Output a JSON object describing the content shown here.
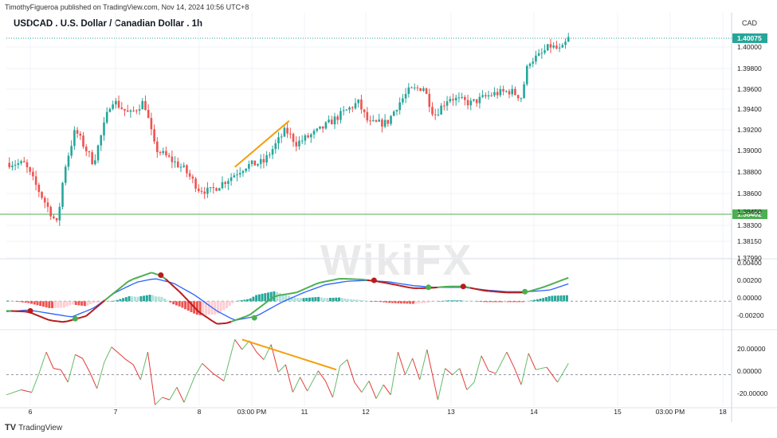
{
  "header": {
    "publisher_text": "TimothyFigueroa published on TradingView.com, Nov 14, 2024 10:56 UTC+8",
    "title": "USDCAD . U.S. Dollar / Canadian Dollar . 1h",
    "currency": "CAD"
  },
  "footer": {
    "logo_text": "TradingView"
  },
  "watermark": {
    "text": "WikiFX"
  },
  "colors": {
    "up": "#26a69a",
    "down": "#ef5350",
    "macd_line": "#4caf50",
    "signal_line": "#2962ff",
    "macd_down": "#b71c1c",
    "rsi_up": "#66bb6a",
    "rsi_down": "#e53935",
    "trendline": "#f59e0b",
    "price_line": "#26a69a",
    "support_line": "#4caf50"
  },
  "chart_data": [
    {
      "type": "candlestick",
      "title": "USDCAD . U.S. Dollar / Canadian Dollar . 1h",
      "x_tick_labels": [
        "6",
        "7",
        "8",
        "03:00 PM",
        "11",
        "12",
        "13",
        "14",
        "15",
        "03:00 PM",
        "18"
      ],
      "y_tick_labels": [
        "1.40000",
        "1.39800",
        "1.39600",
        "1.39400",
        "1.39200",
        "1.39000",
        "1.38800",
        "1.38600",
        "1.38450",
        "1.38300",
        "1.38150",
        "1.37990"
      ],
      "ylim": [
        1.3795,
        1.4012
      ],
      "current_price": 1.40075,
      "current_price_label": "1.40075",
      "horizontal_level": 1.38402,
      "horizontal_level_label": "1.38402",
      "trendline": {
        "from_x": 0.315,
        "from_y": 1.3882,
        "to_x": 0.39,
        "to_y": 1.3927
      },
      "anchors": [
        [
          0,
          1.3886
        ],
        [
          0.025,
          1.3885
        ],
        [
          0.05,
          1.3852
        ],
        [
          0.07,
          1.3826
        ],
        [
          0.08,
          1.388
        ],
        [
          0.095,
          1.3918
        ],
        [
          0.12,
          1.3886
        ],
        [
          0.145,
          1.3948
        ],
        [
          0.17,
          1.3933
        ],
        [
          0.19,
          1.3946
        ],
        [
          0.205,
          1.39
        ],
        [
          0.245,
          1.388
        ],
        [
          0.265,
          1.3861
        ],
        [
          0.28,
          1.3858
        ],
        [
          0.305,
          1.387
        ],
        [
          0.33,
          1.3883
        ],
        [
          0.355,
          1.3887
        ],
        [
          0.385,
          1.3918
        ],
        [
          0.4,
          1.3905
        ],
        [
          0.43,
          1.3917
        ],
        [
          0.465,
          1.3935
        ],
        [
          0.485,
          1.3945
        ],
        [
          0.5,
          1.3924
        ],
        [
          0.525,
          1.3925
        ],
        [
          0.54,
          1.3943
        ],
        [
          0.555,
          1.3956
        ],
        [
          0.575,
          1.396
        ],
        [
          0.59,
          1.3932
        ],
        [
          0.61,
          1.395
        ],
        [
          0.64,
          1.3944
        ],
        [
          0.67,
          1.3953
        ],
        [
          0.695,
          1.3956
        ],
        [
          0.71,
          1.395
        ],
        [
          0.72,
          1.3985
        ],
        [
          0.735,
          1.399
        ],
        [
          0.75,
          1.4
        ],
        [
          0.765,
          1.3995
        ],
        [
          0.775,
          1.4007
        ]
      ],
      "n_bars": 190
    },
    {
      "type": "macd",
      "y_tick_labels": [
        "0.00400",
        "0.00200",
        "0.00000",
        "-0.00200"
      ],
      "ylim": [
        -0.0029,
        0.0046
      ],
      "macd_anchors": [
        [
          0,
          -0.0011
        ],
        [
          0.03,
          -0.0012
        ],
        [
          0.06,
          -0.0022
        ],
        [
          0.08,
          -0.0024
        ],
        [
          0.11,
          -0.0017
        ],
        [
          0.14,
          0.0004
        ],
        [
          0.17,
          0.0024
        ],
        [
          0.2,
          0.0033
        ],
        [
          0.215,
          0.0029
        ],
        [
          0.24,
          0.001
        ],
        [
          0.265,
          -0.0012
        ],
        [
          0.29,
          -0.0026
        ],
        [
          0.305,
          -0.0025
        ],
        [
          0.335,
          -0.0016
        ],
        [
          0.37,
          0.0006
        ],
        [
          0.4,
          0.001
        ],
        [
          0.43,
          0.0021
        ],
        [
          0.46,
          0.0026
        ],
        [
          0.49,
          0.0025
        ],
        [
          0.51,
          0.0023
        ],
        [
          0.53,
          0.002
        ],
        [
          0.56,
          0.0015
        ],
        [
          0.58,
          0.0015
        ],
        [
          0.61,
          0.0017
        ],
        [
          0.63,
          0.0017
        ],
        [
          0.66,
          0.0012
        ],
        [
          0.69,
          0.001
        ],
        [
          0.715,
          0.001
        ],
        [
          0.74,
          0.0016
        ],
        [
          0.775,
          0.0027
        ]
      ],
      "signal_anchors": [
        [
          0,
          -0.0012
        ],
        [
          0.03,
          -0.001
        ],
        [
          0.06,
          -0.0014
        ],
        [
          0.09,
          -0.0018
        ],
        [
          0.12,
          -0.0008
        ],
        [
          0.15,
          0.001
        ],
        [
          0.18,
          0.0022
        ],
        [
          0.205,
          0.0026
        ],
        [
          0.23,
          0.0021
        ],
        [
          0.26,
          0.0007
        ],
        [
          0.29,
          -0.0011
        ],
        [
          0.315,
          -0.0022
        ],
        [
          0.345,
          -0.0017
        ],
        [
          0.38,
          -0.0001
        ],
        [
          0.41,
          0.001
        ],
        [
          0.44,
          0.0019
        ],
        [
          0.47,
          0.0023
        ],
        [
          0.5,
          0.0024
        ],
        [
          0.53,
          0.0022
        ],
        [
          0.56,
          0.0018
        ],
        [
          0.59,
          0.0016
        ],
        [
          0.63,
          0.0016
        ],
        [
          0.66,
          0.0013
        ],
        [
          0.69,
          0.0011
        ],
        [
          0.72,
          0.0011
        ],
        [
          0.75,
          0.0013
        ],
        [
          0.775,
          0.002
        ]
      ],
      "cross_markers": [
        {
          "x": 0.033,
          "value": -0.0011,
          "color": "#b71c1c"
        },
        {
          "x": 0.095,
          "value": -0.002,
          "color": "#4caf50"
        },
        {
          "x": 0.213,
          "value": 0.003,
          "color": "#b71c1c"
        },
        {
          "x": 0.342,
          "value": -0.0019,
          "color": "#4caf50"
        },
        {
          "x": 0.507,
          "value": 0.0024,
          "color": "#b71c1c"
        },
        {
          "x": 0.582,
          "value": 0.0016,
          "color": "#4caf50"
        },
        {
          "x": 0.63,
          "value": 0.0017,
          "color": "#b71c1c"
        },
        {
          "x": 0.715,
          "value": 0.0011,
          "color": "#4caf50"
        }
      ]
    },
    {
      "type": "oscillator",
      "y_tick_labels": [
        "20.00000",
        "0.00000",
        "-20.00000"
      ],
      "ylim": [
        -25,
        32
      ],
      "anchors": [
        [
          0,
          -16
        ],
        [
          0.02,
          -12
        ],
        [
          0.035,
          -14
        ],
        [
          0.045,
          1
        ],
        [
          0.055,
          18
        ],
        [
          0.065,
          5
        ],
        [
          0.075,
          4
        ],
        [
          0.085,
          -6
        ],
        [
          0.095,
          16
        ],
        [
          0.105,
          13
        ],
        [
          0.115,
          2
        ],
        [
          0.125,
          -11
        ],
        [
          0.135,
          10
        ],
        [
          0.145,
          22
        ],
        [
          0.155,
          17
        ],
        [
          0.165,
          12
        ],
        [
          0.175,
          8
        ],
        [
          0.185,
          -4
        ],
        [
          0.195,
          18
        ],
        [
          0.205,
          -24
        ],
        [
          0.215,
          -18
        ],
        [
          0.225,
          -20
        ],
        [
          0.235,
          -10
        ],
        [
          0.245,
          -22
        ],
        [
          0.26,
          -1
        ],
        [
          0.27,
          9
        ],
        [
          0.285,
          1
        ],
        [
          0.3,
          -5
        ],
        [
          0.315,
          28
        ],
        [
          0.325,
          20
        ],
        [
          0.335,
          27
        ],
        [
          0.345,
          18
        ],
        [
          0.355,
          12
        ],
        [
          0.365,
          24
        ],
        [
          0.375,
          2
        ],
        [
          0.385,
          8
        ],
        [
          0.395,
          -14
        ],
        [
          0.405,
          -2
        ],
        [
          0.415,
          -13
        ],
        [
          0.43,
          3
        ],
        [
          0.44,
          -5
        ],
        [
          0.45,
          -18
        ],
        [
          0.46,
          7
        ],
        [
          0.47,
          12
        ],
        [
          0.48,
          -6
        ],
        [
          0.49,
          -14
        ],
        [
          0.5,
          -5
        ],
        [
          0.51,
          -19
        ],
        [
          0.52,
          -8
        ],
        [
          0.53,
          -16
        ],
        [
          0.54,
          18
        ],
        [
          0.55,
          0
        ],
        [
          0.56,
          13
        ],
        [
          0.57,
          -4
        ],
        [
          0.58,
          20
        ],
        [
          0.595,
          -20
        ],
        [
          0.605,
          5
        ],
        [
          0.615,
          0
        ],
        [
          0.625,
          5
        ],
        [
          0.635,
          -12
        ],
        [
          0.645,
          -6
        ],
        [
          0.655,
          15
        ],
        [
          0.665,
          3
        ],
        [
          0.675,
          1
        ],
        [
          0.69,
          18
        ],
        [
          0.7,
          6
        ],
        [
          0.71,
          -8
        ],
        [
          0.72,
          17
        ],
        [
          0.73,
          4
        ],
        [
          0.745,
          6
        ],
        [
          0.76,
          -6
        ],
        [
          0.775,
          9
        ]
      ],
      "trendline": {
        "from_x": 0.325,
        "from_y": 28,
        "to_x": 0.455,
        "to_y": 4
      }
    }
  ]
}
